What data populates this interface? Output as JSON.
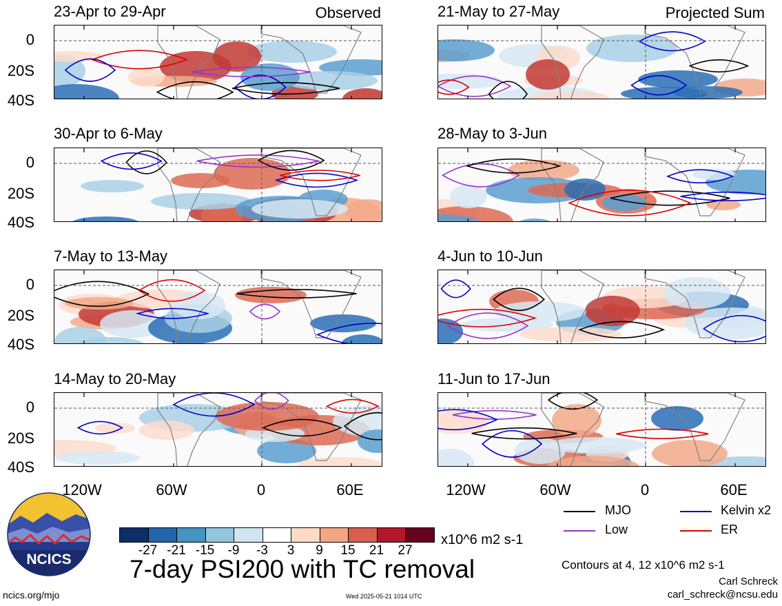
{
  "panels": [
    {
      "title": "23-Apr to 29-Apr",
      "tag": "Observed"
    },
    {
      "title": "21-May to 27-May",
      "tag": "Projected Sum"
    },
    {
      "title": "30-Apr to 6-May",
      "tag": ""
    },
    {
      "title": "28-May to 3-Jun",
      "tag": ""
    },
    {
      "title": "7-May to 13-May",
      "tag": ""
    },
    {
      "title": "4-Jun to 10-Jun",
      "tag": ""
    },
    {
      "title": "14-May to 20-May",
      "tag": ""
    },
    {
      "title": "11-Jun to 17-Jun",
      "tag": ""
    }
  ],
  "lat_labels": [
    "0",
    "20S",
    "40S"
  ],
  "lon_labels": [
    "120W",
    "60W",
    "0",
    "60E"
  ],
  "legend": {
    "mjo": "MJO",
    "kelvin": "Kelvin x2",
    "low": "Low",
    "er": "ER",
    "colors": {
      "mjo": "#000000",
      "kelvin": "#0000cc",
      "low": "#9933cc",
      "er": "#dd0000"
    }
  },
  "colorbar": {
    "ticks": [
      "-27",
      "-21",
      "-15",
      "-9",
      "-3",
      "3",
      "9",
      "15",
      "21",
      "27"
    ],
    "units": "x10^6 m2 s-1",
    "colors": [
      "#0b2f66",
      "#2166ac",
      "#4393c3",
      "#92c5de",
      "#d1e5f0",
      "#ffffff",
      "#fddbc7",
      "#f4a582",
      "#d6604d",
      "#b2182b",
      "#67001f"
    ]
  },
  "main_title": "7-day PSI200 with TC removal",
  "logo_text": "NCICS",
  "contours_note": "Contours at 4, 12 x10^6 m2 s-1",
  "author": "Carl Schreck",
  "email": "carl_schreck@ncsu.edu",
  "site": "ncics.org/mjo",
  "timestamp": "Wed 2025-05-21 1014 UTC"
}
